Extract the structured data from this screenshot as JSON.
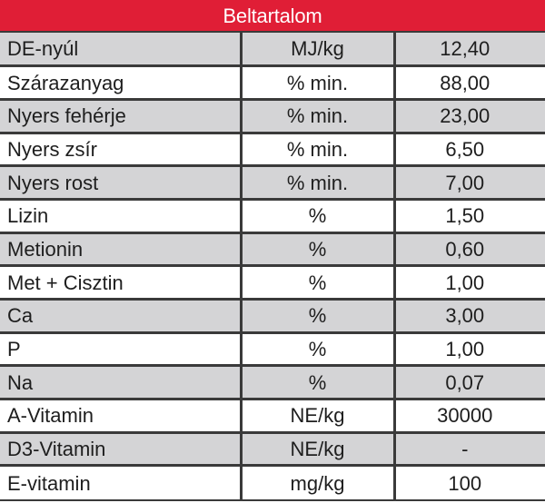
{
  "table": {
    "title": "Beltartalom",
    "header_color": "#e01e36",
    "rows": [
      {
        "name": "DE-nyúl",
        "unit": "MJ/kg",
        "value": "12,40"
      },
      {
        "name": "Szárazanyag",
        "unit": "% min.",
        "value": "88,00"
      },
      {
        "name": "Nyers fehérje",
        "unit": "% min.",
        "value": "23,00"
      },
      {
        "name": "Nyers zsír",
        "unit": "% min.",
        "value": "6,50"
      },
      {
        "name": "Nyers rost",
        "unit": "% min.",
        "value": "7,00"
      },
      {
        "name": "Lizin",
        "unit": "%",
        "value": "1,50"
      },
      {
        "name": "Metionin",
        "unit": "%",
        "value": "0,60"
      },
      {
        "name": "Met + Cisztin",
        "unit": "%",
        "value": "1,00"
      },
      {
        "name": "Ca",
        "unit": "%",
        "value": "3,00"
      },
      {
        "name": "P",
        "unit": "%",
        "value": "1,00"
      },
      {
        "name": "Na",
        "unit": "%",
        "value": "0,07"
      },
      {
        "name": "A-Vitamin",
        "unit": "NE/kg",
        "value": "30000"
      },
      {
        "name": "D3-Vitamin",
        "unit": "NE/kg",
        "value": "-"
      },
      {
        "name": "E-vitamin",
        "unit": "mg/kg",
        "value": "100"
      }
    ]
  }
}
